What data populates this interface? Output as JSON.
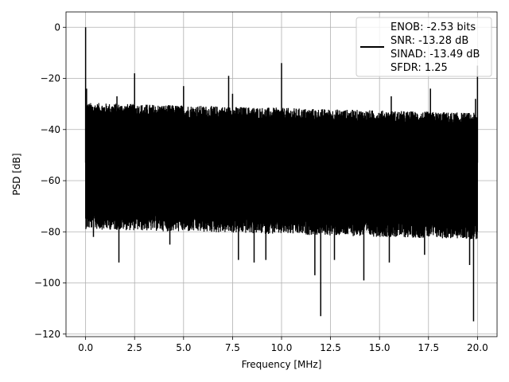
{
  "chart_data": {
    "type": "line",
    "xlabel": "Frequency [MHz]",
    "ylabel": "PSD [dB]",
    "xlim": [
      -1.0,
      21.0
    ],
    "ylim": [
      -121,
      6
    ],
    "xticks": [
      0.0,
      2.5,
      5.0,
      7.5,
      10.0,
      12.5,
      15.0,
      17.5,
      20.0
    ],
    "xtick_labels": [
      "0.0",
      "2.5",
      "5.0",
      "7.5",
      "10.0",
      "12.5",
      "15.0",
      "17.5",
      "20.0"
    ],
    "yticks": [
      0,
      -20,
      -40,
      -60,
      -80,
      -100,
      -120
    ],
    "ytick_labels": [
      "0",
      "−20",
      "−40",
      "−60",
      "−80",
      "−100",
      "−120"
    ],
    "grid": true,
    "legend_position": "top-right",
    "legend_lines": [
      "ENOB: -2.53 bits",
      "SNR: -13.28 dB",
      "SINAD: -13.49 dB",
      "SFDR: 1.25"
    ],
    "series_color": "#000000",
    "noise_band": {
      "x_range": [
        0.0,
        20.0
      ],
      "upper_db": [
        -33,
        -37
      ],
      "lower_db": [
        -73,
        -77
      ]
    },
    "spurs": [
      {
        "x": 0.0,
        "y": 0
      },
      {
        "x": 0.05,
        "y": -24
      },
      {
        "x": 1.6,
        "y": -27
      },
      {
        "x": 2.5,
        "y": -18
      },
      {
        "x": 5.0,
        "y": -23
      },
      {
        "x": 7.3,
        "y": -19
      },
      {
        "x": 7.5,
        "y": -26
      },
      {
        "x": 10.0,
        "y": -14
      },
      {
        "x": 15.6,
        "y": -27
      },
      {
        "x": 17.6,
        "y": -24
      },
      {
        "x": 19.9,
        "y": -28
      },
      {
        "x": 20.0,
        "y": -15
      }
    ],
    "dips": [
      {
        "x": 0.4,
        "y": -82
      },
      {
        "x": 1.7,
        "y": -92
      },
      {
        "x": 4.3,
        "y": -85
      },
      {
        "x": 7.8,
        "y": -91
      },
      {
        "x": 8.6,
        "y": -92
      },
      {
        "x": 9.2,
        "y": -91
      },
      {
        "x": 11.7,
        "y": -97
      },
      {
        "x": 12.0,
        "y": -113
      },
      {
        "x": 12.7,
        "y": -91
      },
      {
        "x": 14.2,
        "y": -99
      },
      {
        "x": 15.5,
        "y": -92
      },
      {
        "x": 17.3,
        "y": -89
      },
      {
        "x": 19.6,
        "y": -93
      },
      {
        "x": 19.8,
        "y": -115
      }
    ]
  }
}
